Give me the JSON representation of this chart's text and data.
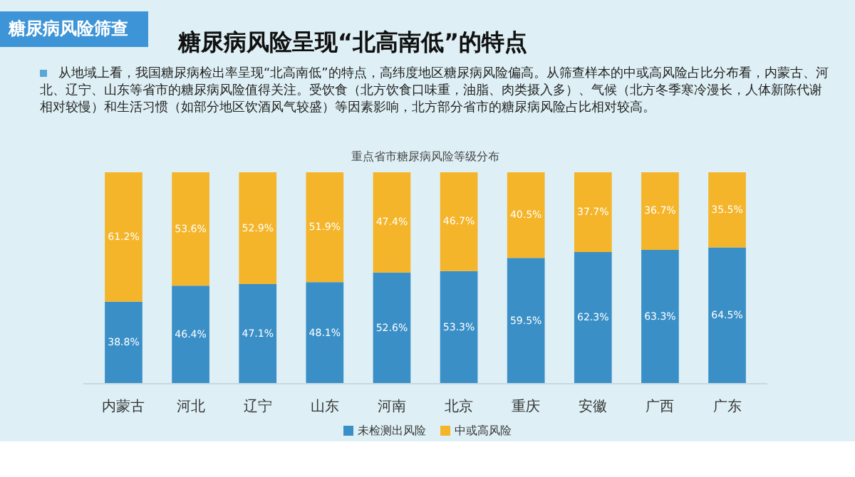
{
  "chart_data": {
    "type": "bar",
    "stacked": true,
    "title": "糖尿病风险呈现“北高南低”的特点",
    "subtitle": "从地域上看，我国糖尿病检出率呈现“北高南低”的特点，高纬度地区糖尿病风险偏高。从筛查样本的中或高风险占比分布看，内蒙古、河北、辽宁、山东等省市的糖尿病风险值得关注。受饮食（北方饮食口味重，油脂、肉类摄入多）、气候（北方冬季寒冷漫长，人体新陈代谢相对较慢）和生活习惯（如部分地区饮酒风气较盛）等因素影响，北方部分省市的糖尿病风险占比相对较高。",
    "annotations": [
      "糖尿病风险筛查",
      "重点省市糖尿病风险等级分布"
    ],
    "categories": [
      "内蒙古",
      "河北",
      "辽宁",
      "山东",
      "河南",
      "北京",
      "重庆",
      "安徽",
      "广西",
      "广东"
    ],
    "series": [
      {
        "name": "未检测出风险",
        "color": "#3a8fc7",
        "values": [
          38.8,
          46.4,
          47.1,
          48.1,
          52.6,
          53.3,
          59.5,
          62.3,
          63.3,
          64.5
        ],
        "value_labels": [
          "38.8%",
          "46.4%",
          "47.1%",
          "48.1%",
          "52.6%",
          "53.3%",
          "59.5%",
          "62.3%",
          "63.3%",
          "64.5%"
        ]
      },
      {
        "name": "中或高风险",
        "color": "#f5b52a",
        "values": [
          61.2,
          53.6,
          52.9,
          51.9,
          47.4,
          46.7,
          40.5,
          37.7,
          36.7,
          35.5
        ],
        "value_labels": [
          "61.2%",
          "53.6%",
          "52.9%",
          "51.9%",
          "47.4%",
          "46.7%",
          "40.5%",
          "37.7%",
          "36.7%",
          "35.5%"
        ]
      }
    ],
    "legend": "bottom"
  }
}
